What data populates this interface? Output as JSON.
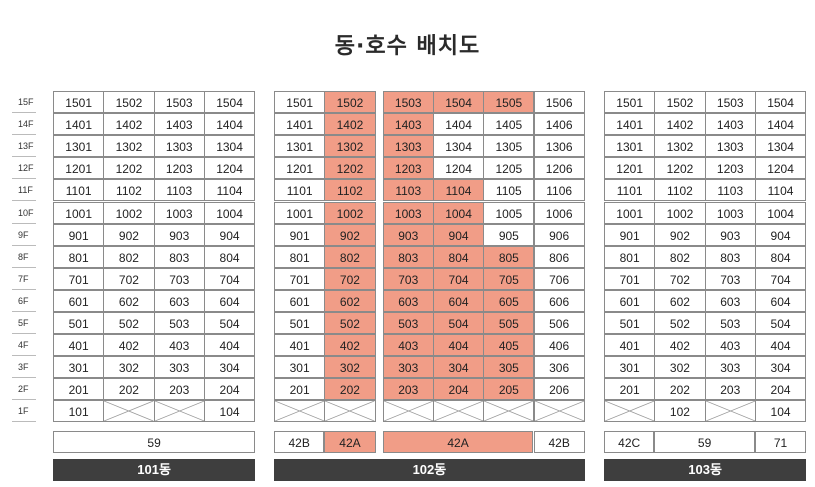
{
  "title": "동·호수 배치도",
  "floors": [
    "15F",
    "14F",
    "13F",
    "12F",
    "11F",
    "10F",
    "9F",
    "8F",
    "7F",
    "6F",
    "5F",
    "4F",
    "3F",
    "2F",
    "1F"
  ],
  "buildings": [
    {
      "name": "101동",
      "units": [
        [
          "1501",
          "1502",
          "1503",
          "1504"
        ],
        [
          "1401",
          "1402",
          "1403",
          "1404"
        ],
        [
          "1301",
          "1302",
          "1303",
          "1304"
        ],
        [
          "1201",
          "1202",
          "1203",
          "1204"
        ],
        [
          "1101",
          "1102",
          "1103",
          "1104"
        ],
        [
          "1001",
          "1002",
          "1003",
          "1004"
        ],
        [
          "901",
          "902",
          "903",
          "904"
        ],
        [
          "801",
          "802",
          "803",
          "804"
        ],
        [
          "701",
          "702",
          "703",
          "704"
        ],
        [
          "601",
          "602",
          "603",
          "604"
        ],
        [
          "501",
          "502",
          "503",
          "504"
        ],
        [
          "401",
          "402",
          "403",
          "404"
        ],
        [
          "301",
          "302",
          "303",
          "304"
        ],
        [
          "201",
          "202",
          "203",
          "204"
        ],
        [
          "101",
          "",
          "",
          "104"
        ]
      ],
      "types": [
        "59"
      ]
    },
    {
      "name": "102동",
      "units": [
        [
          "1501",
          "1502",
          "1503",
          "1504",
          "1505",
          "1506"
        ],
        [
          "1401",
          "1402",
          "1403",
          "1404",
          "1405",
          "1406"
        ],
        [
          "1301",
          "1302",
          "1303",
          "1304",
          "1305",
          "1306"
        ],
        [
          "1201",
          "1202",
          "1203",
          "1204",
          "1205",
          "1206"
        ],
        [
          "1101",
          "1102",
          "1103",
          "1104",
          "1105",
          "1106"
        ],
        [
          "1001",
          "1002",
          "1003",
          "1004",
          "1005",
          "1006"
        ],
        [
          "901",
          "902",
          "903",
          "904",
          "905",
          "906"
        ],
        [
          "801",
          "802",
          "803",
          "804",
          "805",
          "806"
        ],
        [
          "701",
          "702",
          "703",
          "704",
          "705",
          "706"
        ],
        [
          "601",
          "602",
          "603",
          "604",
          "605",
          "606"
        ],
        [
          "501",
          "502",
          "503",
          "504",
          "505",
          "506"
        ],
        [
          "401",
          "402",
          "403",
          "404",
          "405",
          "406"
        ],
        [
          "301",
          "302",
          "303",
          "304",
          "305",
          "306"
        ],
        [
          "201",
          "202",
          "203",
          "204",
          "205",
          "206"
        ],
        [
          "",
          "",
          "",
          "",
          "",
          ""
        ]
      ],
      "types": [
        "42B",
        "42A",
        "42A",
        "42B"
      ]
    },
    {
      "name": "103동",
      "units": [
        [
          "1501",
          "1502",
          "1503",
          "1504"
        ],
        [
          "1401",
          "1402",
          "1403",
          "1404"
        ],
        [
          "1301",
          "1302",
          "1303",
          "1304"
        ],
        [
          "1201",
          "1202",
          "1203",
          "1204"
        ],
        [
          "1101",
          "1102",
          "1103",
          "1104"
        ],
        [
          "1001",
          "1002",
          "1003",
          "1004"
        ],
        [
          "901",
          "902",
          "903",
          "904"
        ],
        [
          "801",
          "802",
          "803",
          "804"
        ],
        [
          "701",
          "702",
          "703",
          "704"
        ],
        [
          "601",
          "602",
          "603",
          "604"
        ],
        [
          "501",
          "502",
          "503",
          "504"
        ],
        [
          "401",
          "402",
          "403",
          "404"
        ],
        [
          "301",
          "302",
          "303",
          "304"
        ],
        [
          "201",
          "202",
          "203",
          "204"
        ],
        [
          "",
          "102",
          "",
          "104"
        ]
      ],
      "types": [
        "42C",
        "59",
        "71"
      ]
    }
  ],
  "highlight_color": "#f19d87",
  "highlighted_units_102": [
    "1502",
    "1402",
    "1302",
    "1202",
    "1102",
    "1002",
    "902",
    "802",
    "702",
    "602",
    "502",
    "402",
    "302",
    "202",
    "1503",
    "1504",
    "1505",
    "1403",
    "1303",
    "1203",
    "1103",
    "1104",
    "1003",
    "1004",
    "903",
    "904",
    "803",
    "804",
    "805",
    "703",
    "704",
    "705",
    "603",
    "604",
    "605",
    "503",
    "504",
    "505",
    "403",
    "404",
    "405",
    "303",
    "304",
    "305",
    "203",
    "204",
    "205"
  ]
}
